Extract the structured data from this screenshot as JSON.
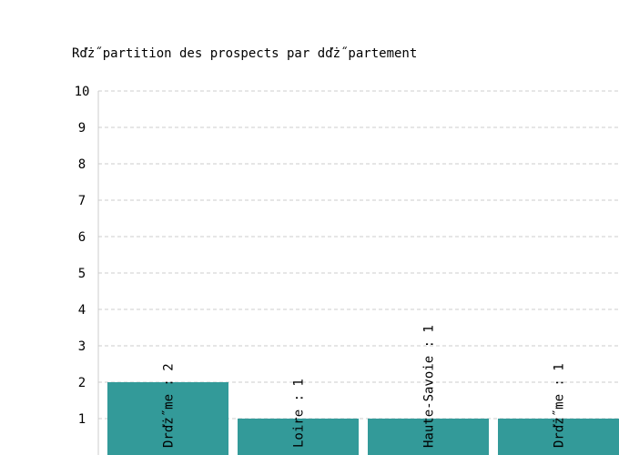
{
  "chart_data": {
    "type": "bar",
    "title": "Rďż˝partition des prospects par dďż˝partement",
    "xlabel": "",
    "ylabel": "",
    "ylim": [
      0,
      10
    ],
    "yticks": [
      1,
      2,
      3,
      4,
      5,
      6,
      7,
      8,
      9,
      10
    ],
    "grid": true,
    "legend": "none",
    "categories": [
      "Drďż˝me",
      "Loire",
      "Haute-Savoie",
      "Drďż˝me"
    ],
    "values": [
      2,
      1,
      1,
      1
    ],
    "data_labels": [
      "Drďż˝me : 2",
      "Loire : 1",
      "Haute-Savoie : 1",
      "Drďż˝me : 1"
    ],
    "colors": {
      "bar": "#339a99",
      "grid": "#cccccc",
      "axis": "#cccccc",
      "text": "#000000"
    }
  }
}
